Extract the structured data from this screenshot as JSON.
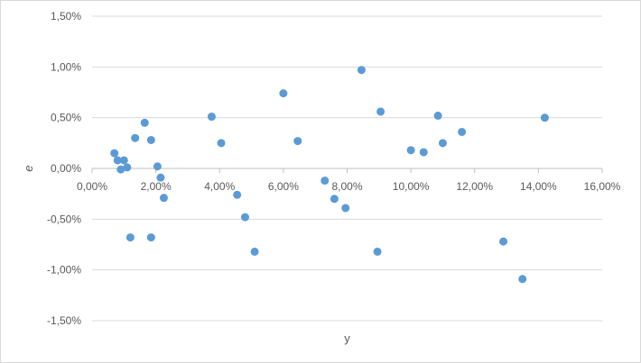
{
  "chart_data": {
    "type": "scatter",
    "title": "",
    "xlabel": "y",
    "ylabel": "e",
    "xlim": [
      0,
      16
    ],
    "ylim": [
      -1.5,
      1.5
    ],
    "x_ticks": [
      0,
      2,
      4,
      6,
      8,
      10,
      12,
      14,
      16
    ],
    "y_ticks": [
      -1.5,
      -1.0,
      -0.5,
      0,
      0.5,
      1.0,
      1.5
    ],
    "x_tick_labels": [
      "0,00%",
      "2,00%",
      "4,00%",
      "6,00%",
      "8,00%",
      "10,00%",
      "12,00%",
      "14,00%",
      "16,00%"
    ],
    "y_tick_labels": [
      "-1,50%",
      "-1,00%",
      "-0,50%",
      "0,00%",
      "0,50%",
      "1,00%",
      "1,50%"
    ],
    "grid": "horizontal",
    "marker_color": "#5b9bd5",
    "series": [
      {
        "x": [
          0.7,
          0.8,
          0.9,
          1.0,
          1.1,
          1.2,
          1.35,
          1.65,
          1.85,
          1.85,
          2.05,
          2.15,
          2.25,
          3.75,
          4.05,
          4.55,
          4.8,
          5.1,
          6.0,
          6.45,
          7.3,
          7.6,
          7.95,
          8.45,
          8.95,
          9.05,
          10.0,
          10.4,
          10.85,
          11.0,
          11.6,
          12.9,
          13.5,
          14.2
        ],
        "y": [
          0.15,
          0.08,
          -0.01,
          0.08,
          0.01,
          -0.68,
          0.3,
          0.45,
          0.28,
          -0.68,
          0.02,
          -0.09,
          -0.29,
          0.51,
          0.25,
          -0.26,
          -0.48,
          -0.82,
          0.74,
          0.27,
          -0.12,
          -0.3,
          -0.39,
          0.97,
          -0.82,
          0.56,
          0.18,
          0.16,
          0.52,
          0.25,
          0.36,
          -0.72,
          -1.09,
          0.5
        ]
      }
    ]
  }
}
